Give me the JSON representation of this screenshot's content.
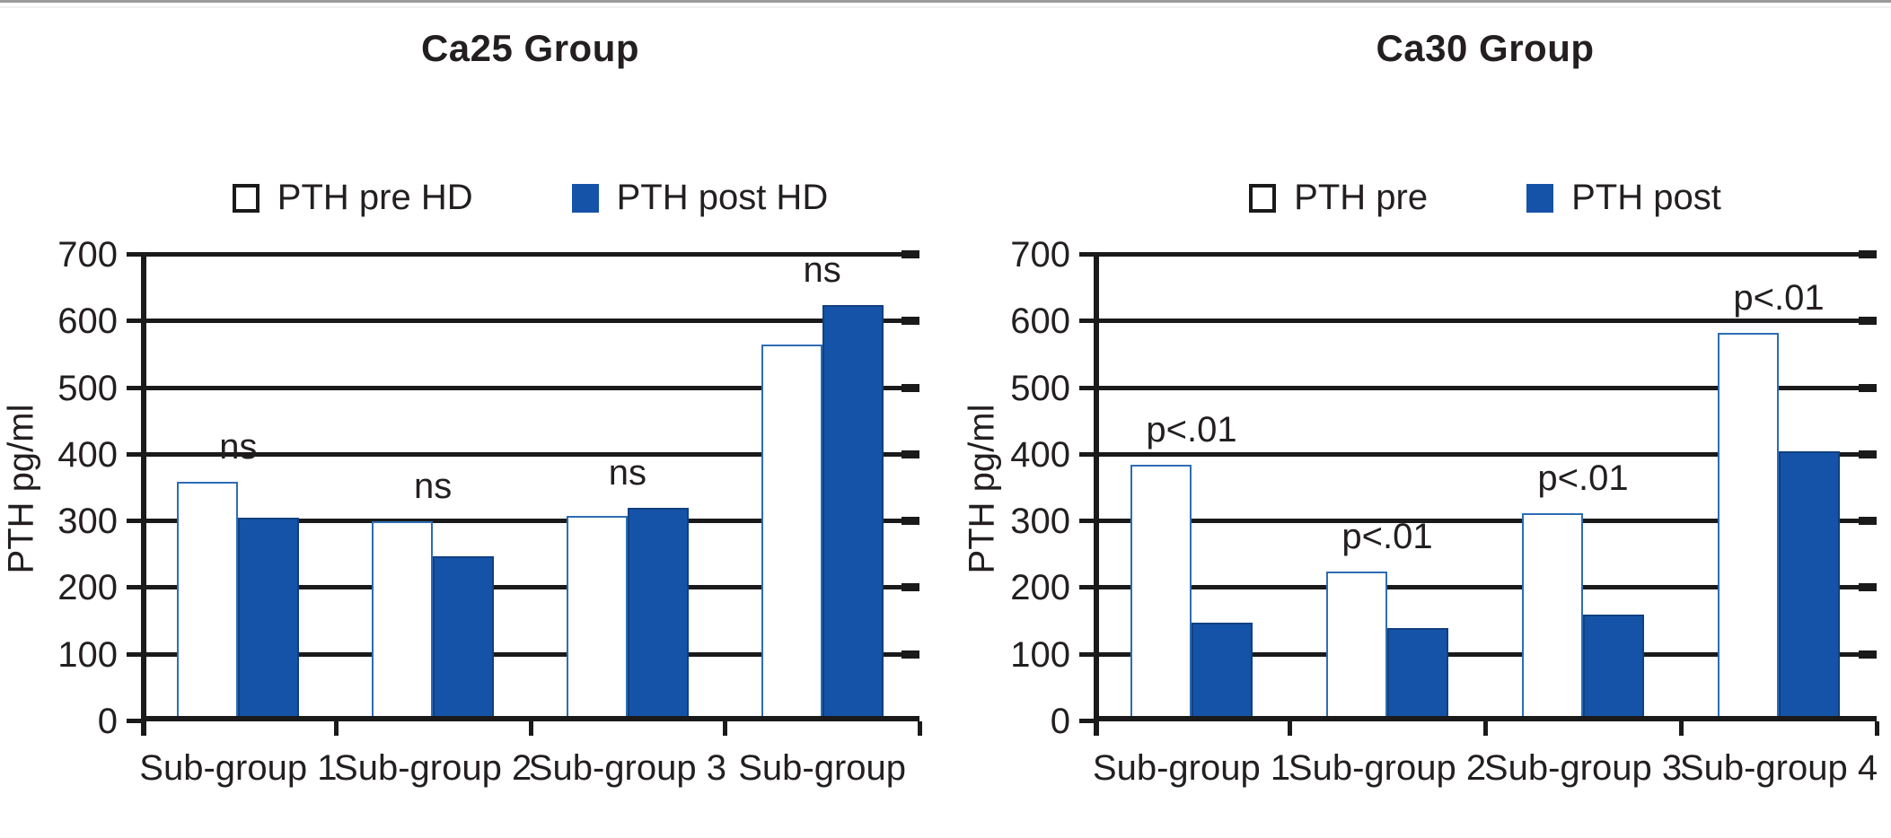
{
  "colors": {
    "bar_fill": "#1553a8",
    "bar_outline": "#2e6db4",
    "axis": "#1a1a1a",
    "text": "#231f20",
    "top_border": "#9b9b9b"
  },
  "chart_data": [
    {
      "type": "bar",
      "title": "Ca25 Group",
      "xlabel": "",
      "ylabel": "PTH pg/ml",
      "ylim": [
        0,
        700
      ],
      "ytick_step": 100,
      "grid": true,
      "legend_position": "top-center",
      "categories": [
        "Sub-group 1",
        "Sub-group 2",
        "Sub-group 3",
        "Sub-group"
      ],
      "series": [
        {
          "name": "PTH pre HD",
          "style": "outline",
          "values": [
            360,
            300,
            308,
            565
          ]
        },
        {
          "name": "PTH post HD",
          "style": "filled",
          "values": [
            305,
            248,
            320,
            625
          ]
        }
      ],
      "annotations": [
        "ns",
        "ns",
        "ns",
        "ns"
      ]
    },
    {
      "type": "bar",
      "title": "Ca30 Group",
      "xlabel": "",
      "ylabel": "PTH pg/ml",
      "ylim": [
        0,
        700
      ],
      "ytick_step": 100,
      "grid": true,
      "legend_position": "top-center",
      "categories": [
        "Sub-group 1",
        "Sub-group 2",
        "Sub-group 3",
        "Sub-group 4"
      ],
      "series": [
        {
          "name": "PTH pre",
          "style": "outline",
          "values": [
            385,
            225,
            313,
            583
          ]
        },
        {
          "name": "PTH post",
          "style": "filled",
          "values": [
            148,
            140,
            160,
            405
          ]
        }
      ],
      "annotations": [
        "p<.01",
        "p<.01",
        "p<.01",
        "p<.01"
      ]
    }
  ]
}
